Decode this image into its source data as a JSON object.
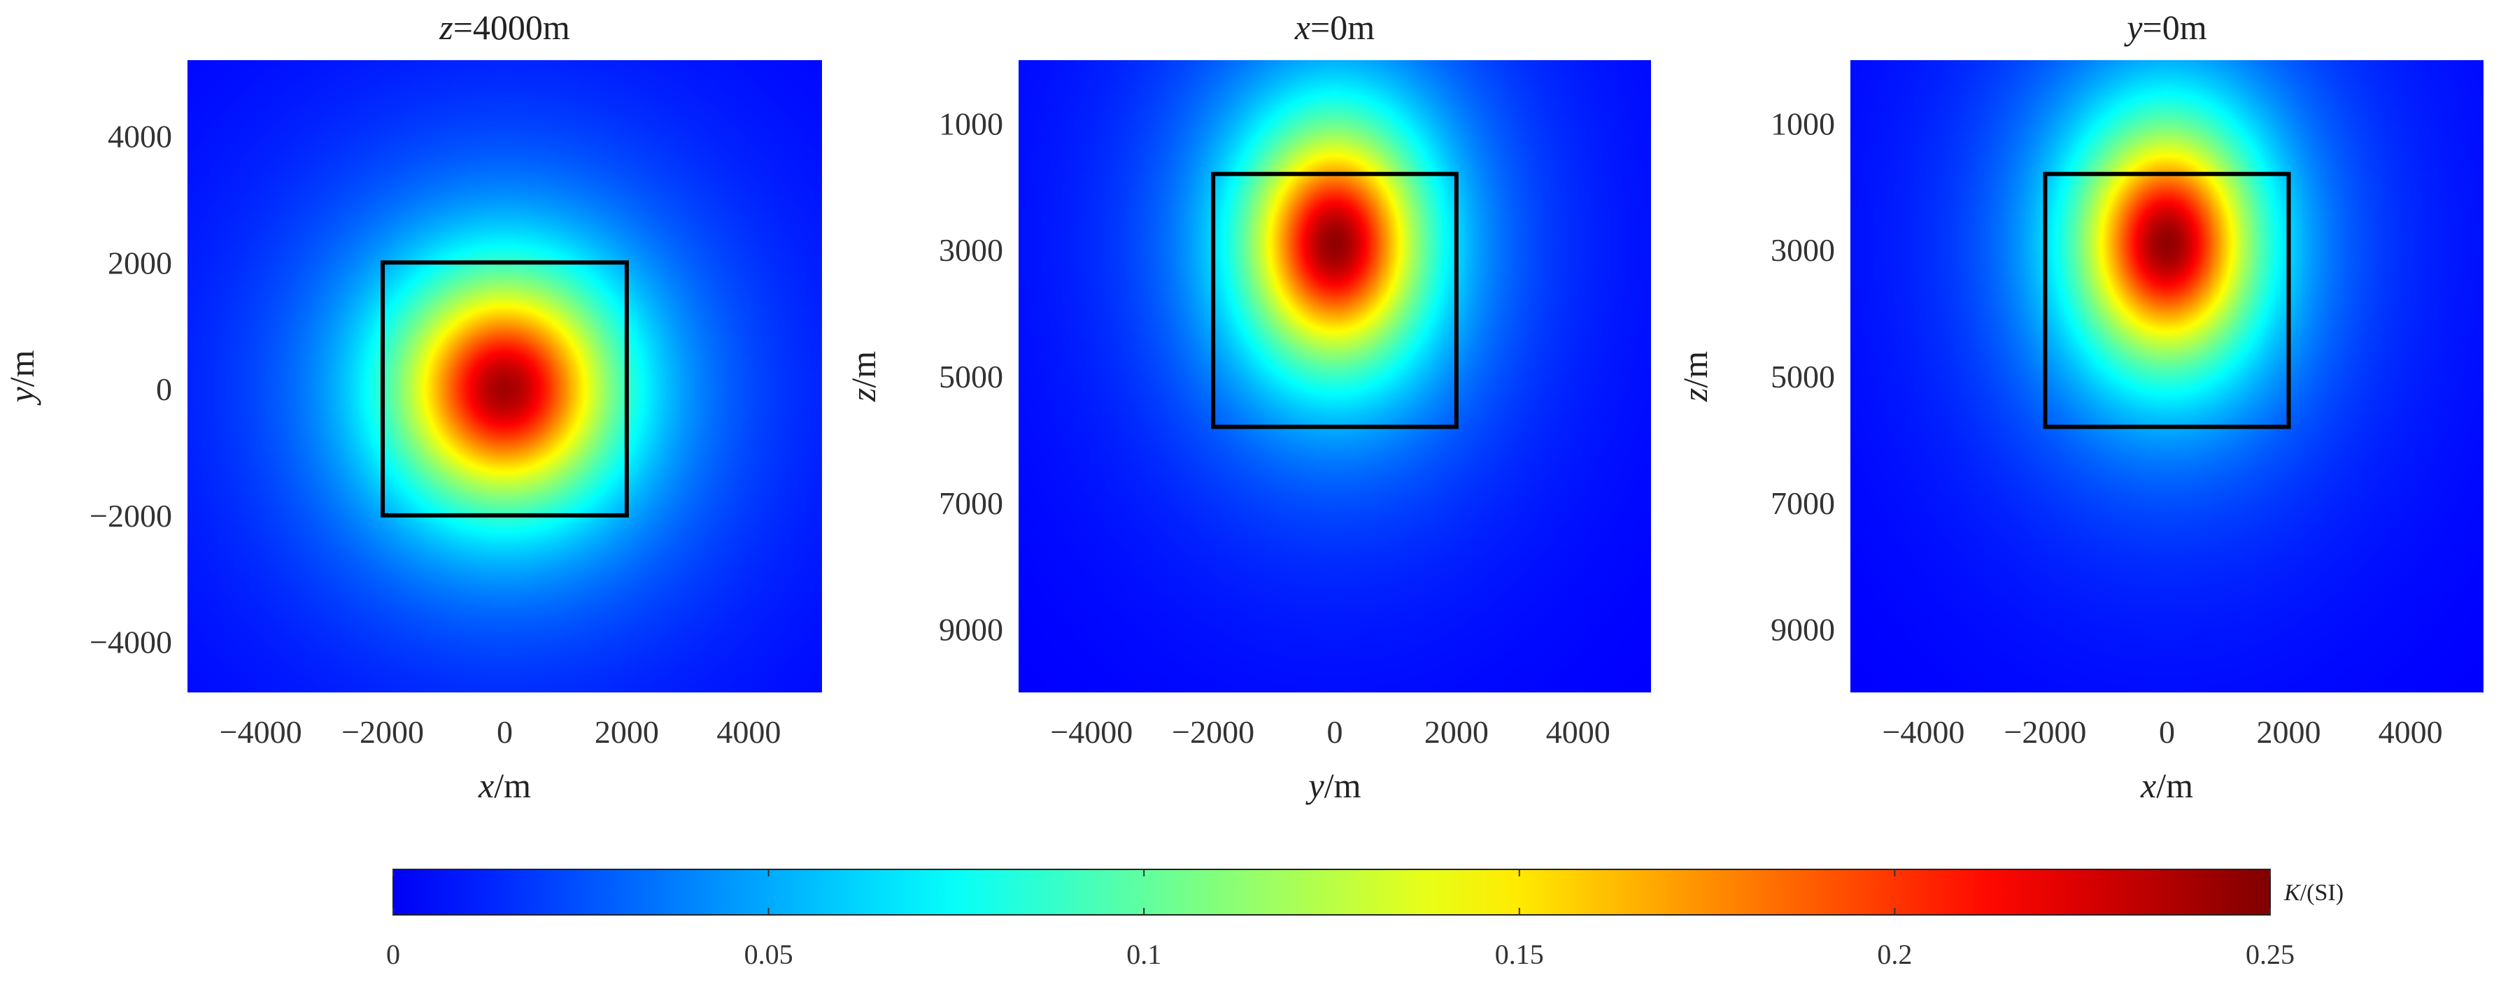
{
  "chart_data": [
    {
      "type": "heatmap",
      "title": {
        "var": "z",
        "rest": "=4000m"
      },
      "xlabel": {
        "var": "x",
        "rest": "/m"
      },
      "ylabel": {
        "var": "y",
        "rest": "/m"
      },
      "xlim": [
        -5200,
        5200
      ],
      "ylim": [
        -4800,
        5200
      ],
      "xticks": [
        -4000,
        -2000,
        0,
        2000,
        4000
      ],
      "xtick_labels": [
        "−4000",
        "−2000",
        "0",
        "2000",
        "4000"
      ],
      "yticks": [
        4000,
        2000,
        0,
        -2000,
        -4000
      ],
      "ytick_labels": [
        "4000",
        "2000",
        "0",
        "−2000",
        "−4000"
      ],
      "y_reversed": false,
      "box": {
        "x": [
          -2000,
          2000
        ],
        "y": [
          -2000,
          2000
        ]
      },
      "peak": {
        "x": 0,
        "y": 0,
        "value": 0.24
      },
      "falloff": {
        "sx": 1500,
        "sy": 1500
      }
    },
    {
      "type": "heatmap",
      "title": {
        "var": "x",
        "rest": "=0m"
      },
      "xlabel": {
        "var": "y",
        "rest": "/m"
      },
      "ylabel": {
        "var": "z",
        "rest": "/m"
      },
      "xlim": [
        -5200,
        5200
      ],
      "ylim": [
        0,
        10000
      ],
      "xticks": [
        -4000,
        -2000,
        0,
        2000,
        4000
      ],
      "xtick_labels": [
        "−4000",
        "−2000",
        "0",
        "2000",
        "4000"
      ],
      "yticks": [
        1000,
        3000,
        5000,
        7000,
        9000
      ],
      "ytick_labels": [
        "1000",
        "3000",
        "5000",
        "7000",
        "9000"
      ],
      "y_reversed": true,
      "box": {
        "x": [
          -2000,
          2000
        ],
        "y": [
          1800,
          5800
        ]
      },
      "peak": {
        "x": 0,
        "y": 2900,
        "value": 0.245
      },
      "falloff": {
        "sx": 1200,
        "sy": 1550
      }
    },
    {
      "type": "heatmap",
      "title": {
        "var": "y",
        "rest": "=0m"
      },
      "xlabel": {
        "var": "x",
        "rest": "/m"
      },
      "ylabel": {
        "var": "z",
        "rest": "/m"
      },
      "xlim": [
        -5200,
        5200
      ],
      "ylim": [
        0,
        10000
      ],
      "xticks": [
        -4000,
        -2000,
        0,
        2000,
        4000
      ],
      "xtick_labels": [
        "−4000",
        "−2000",
        "0",
        "2000",
        "4000"
      ],
      "yticks": [
        1000,
        3000,
        5000,
        7000,
        9000
      ],
      "ytick_labels": [
        "1000",
        "3000",
        "5000",
        "7000",
        "9000"
      ],
      "y_reversed": true,
      "box": {
        "x": [
          -2000,
          2000
        ],
        "y": [
          1800,
          5800
        ]
      },
      "peak": {
        "x": 0,
        "y": 2900,
        "value": 0.245
      },
      "falloff": {
        "sx": 1200,
        "sy": 1550
      }
    }
  ],
  "colorbar": {
    "min": 0,
    "max": 0.25,
    "ticks": [
      0,
      0.05,
      0.1,
      0.15,
      0.2,
      0.25
    ],
    "tick_labels": [
      "0",
      "0.05",
      "0.1",
      "0.15",
      "0.2",
      "0.25"
    ],
    "label": {
      "var": "K",
      "rest": "/(SI)"
    },
    "colormap": "jet"
  }
}
